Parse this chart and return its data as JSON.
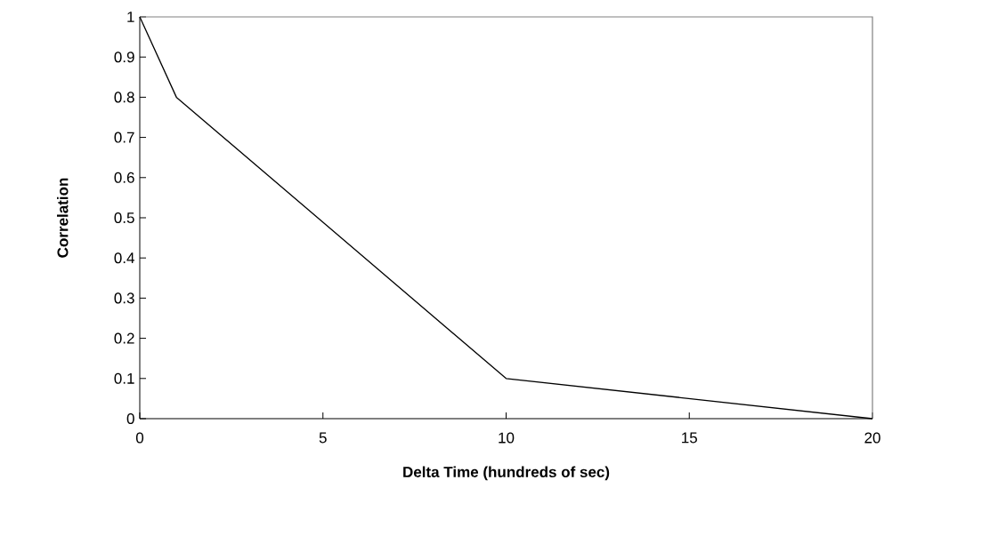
{
  "chart_data": {
    "type": "line",
    "xlabel": "Delta Time (hundreds of sec)",
    "ylabel": "Correlation",
    "x": [
      0,
      1,
      10,
      20
    ],
    "series": [
      {
        "color": "#000000",
        "values": [
          1,
          0.8,
          0.1,
          0
        ]
      }
    ],
    "xlim": [
      0,
      20
    ],
    "xticks": [
      0,
      5,
      10,
      15,
      20
    ],
    "ylim": [
      0,
      1
    ],
    "yticks": [
      0,
      0.1,
      0.2,
      0.3,
      0.4,
      0.5,
      0.6,
      0.7,
      0.8,
      0.9,
      1
    ],
    "grid": false,
    "marker": "none",
    "line_style": "solid"
  }
}
